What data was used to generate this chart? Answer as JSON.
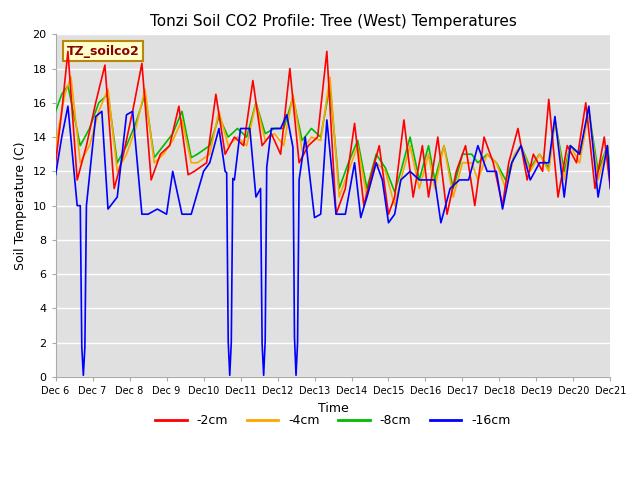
{
  "title": "Tonzi Soil CO2 Profile: Tree (West) Temperatures",
  "ylabel": "Soil Temperature (C)",
  "xlabel": "Time",
  "annotation_text": "TZ_soilco2",
  "xlim": [
    0,
    360
  ],
  "ylim": [
    0,
    20
  ],
  "yticks": [
    0,
    2,
    4,
    6,
    8,
    10,
    12,
    14,
    16,
    18,
    20
  ],
  "xtick_labels": [
    "Dec 6",
    "Dec 7",
    "Dec 8",
    "Dec 9",
    "Dec 10",
    "Dec 11",
    "Dec 12",
    "Dec 13",
    "Dec 14",
    "Dec 15",
    "Dec 16",
    "Dec 17",
    "Dec 18",
    "Dec 19",
    "Dec 20",
    "Dec 21"
  ],
  "xtick_positions": [
    0,
    24,
    48,
    72,
    96,
    120,
    144,
    168,
    192,
    216,
    240,
    264,
    288,
    312,
    336,
    360
  ],
  "colors": {
    "red": "#ff0000",
    "orange": "#ffa500",
    "green": "#00bb00",
    "blue": "#0000ff"
  },
  "legend_labels": [
    "-2cm",
    "-4cm",
    "-8cm",
    "-16cm"
  ],
  "bg_color": "#e0e0e0",
  "grid_color": "#ffffff",
  "title_fontsize": 11,
  "tick_fontsize": 8,
  "ylabel_fontsize": 9
}
